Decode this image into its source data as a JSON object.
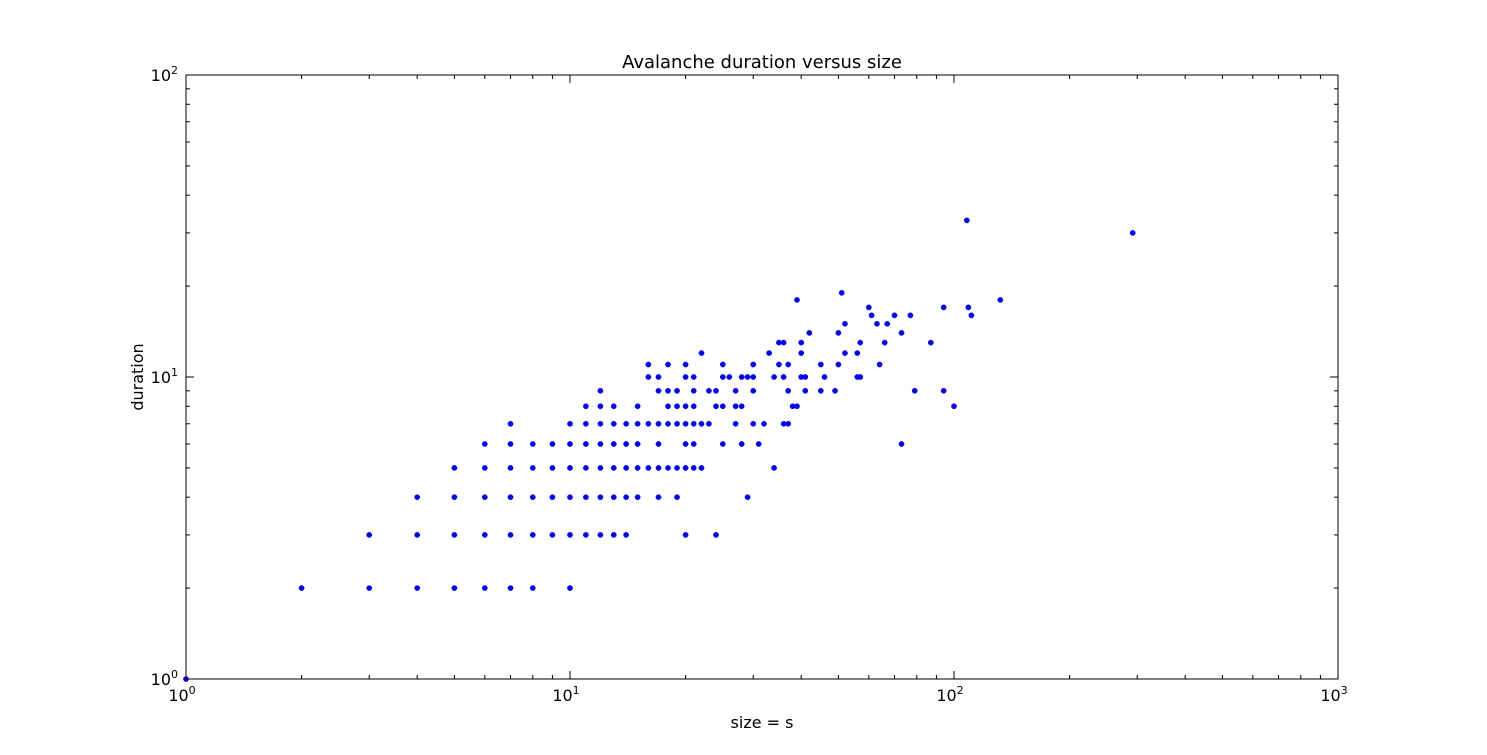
{
  "chart_data": {
    "type": "scatter",
    "title": "Avalanche duration versus size",
    "xlabel": "size = s",
    "ylabel": "duration",
    "xscale": "log",
    "yscale": "log",
    "xlim": [
      1,
      1000
    ],
    "ylim": [
      1,
      100
    ],
    "grid": false,
    "legend": "none",
    "colors": {
      "marker": "#0000ff",
      "axes": "#000000",
      "background": "#ffffff"
    },
    "x_ticks": [
      {
        "value": 1,
        "base": "10",
        "exp": "0"
      },
      {
        "value": 10,
        "base": "10",
        "exp": "1"
      },
      {
        "value": 100,
        "base": "10",
        "exp": "2"
      },
      {
        "value": 1000,
        "base": "10",
        "exp": "3"
      }
    ],
    "y_ticks": [
      {
        "value": 1,
        "base": "10",
        "exp": "0"
      },
      {
        "value": 10,
        "base": "10",
        "exp": "1"
      },
      {
        "value": 100,
        "base": "10",
        "exp": "2"
      }
    ],
    "points": [
      [
        1,
        1
      ],
      [
        2,
        2
      ],
      [
        3,
        2
      ],
      [
        3,
        3
      ],
      [
        4,
        2
      ],
      [
        4,
        3
      ],
      [
        4,
        4
      ],
      [
        5,
        2
      ],
      [
        5,
        3
      ],
      [
        5,
        4
      ],
      [
        5,
        5
      ],
      [
        6,
        2
      ],
      [
        6,
        3
      ],
      [
        6,
        4
      ],
      [
        6,
        5
      ],
      [
        6,
        6
      ],
      [
        7,
        2
      ],
      [
        7,
        3
      ],
      [
        7,
        4
      ],
      [
        7,
        5
      ],
      [
        7,
        6
      ],
      [
        7,
        7
      ],
      [
        8,
        2
      ],
      [
        8,
        3
      ],
      [
        8,
        4
      ],
      [
        8,
        5
      ],
      [
        8,
        6
      ],
      [
        9,
        3
      ],
      [
        9,
        4
      ],
      [
        9,
        5
      ],
      [
        9,
        6
      ],
      [
        10,
        2
      ],
      [
        10,
        3
      ],
      [
        10,
        4
      ],
      [
        10,
        5
      ],
      [
        10,
        6
      ],
      [
        10,
        7
      ],
      [
        11,
        3
      ],
      [
        11,
        4
      ],
      [
        11,
        5
      ],
      [
        11,
        6
      ],
      [
        11,
        7
      ],
      [
        11,
        8
      ],
      [
        12,
        3
      ],
      [
        12,
        4
      ],
      [
        12,
        5
      ],
      [
        12,
        6
      ],
      [
        12,
        7
      ],
      [
        12,
        8
      ],
      [
        12,
        9
      ],
      [
        13,
        3
      ],
      [
        13,
        4
      ],
      [
        13,
        5
      ],
      [
        13,
        6
      ],
      [
        13,
        7
      ],
      [
        13,
        8
      ],
      [
        14,
        3
      ],
      [
        14,
        4
      ],
      [
        14,
        5
      ],
      [
        14,
        6
      ],
      [
        14,
        7
      ],
      [
        15,
        4
      ],
      [
        15,
        5
      ],
      [
        15,
        6
      ],
      [
        15,
        7
      ],
      [
        15,
        8
      ],
      [
        16,
        5
      ],
      [
        16,
        7
      ],
      [
        16,
        10
      ],
      [
        16,
        11
      ],
      [
        17,
        4
      ],
      [
        17,
        5
      ],
      [
        17,
        6
      ],
      [
        17,
        7
      ],
      [
        17,
        9
      ],
      [
        17,
        10
      ],
      [
        18,
        5
      ],
      [
        18,
        7
      ],
      [
        18,
        8
      ],
      [
        18,
        9
      ],
      [
        18,
        11
      ],
      [
        19,
        4
      ],
      [
        19,
        5
      ],
      [
        19,
        7
      ],
      [
        19,
        8
      ],
      [
        19,
        9
      ],
      [
        20,
        3
      ],
      [
        20,
        5
      ],
      [
        20,
        6
      ],
      [
        20,
        7
      ],
      [
        20,
        8
      ],
      [
        20,
        10
      ],
      [
        20,
        11
      ],
      [
        21,
        5
      ],
      [
        21,
        6
      ],
      [
        21,
        7
      ],
      [
        21,
        8
      ],
      [
        21,
        9
      ],
      [
        21,
        10
      ],
      [
        22,
        5
      ],
      [
        22,
        7
      ],
      [
        22,
        12
      ],
      [
        23,
        7
      ],
      [
        23,
        9
      ],
      [
        24,
        3
      ],
      [
        24,
        8
      ],
      [
        24,
        9
      ],
      [
        25,
        6
      ],
      [
        25,
        8
      ],
      [
        25,
        10
      ],
      [
        25,
        11
      ],
      [
        26,
        10
      ],
      [
        27,
        7
      ],
      [
        27,
        8
      ],
      [
        27,
        9
      ],
      [
        28,
        6
      ],
      [
        28,
        8
      ],
      [
        28,
        10
      ],
      [
        29,
        4
      ],
      [
        29,
        10
      ],
      [
        30,
        7
      ],
      [
        30,
        9
      ],
      [
        30,
        10
      ],
      [
        30,
        11
      ],
      [
        31,
        6
      ],
      [
        32,
        7
      ],
      [
        33,
        12
      ],
      [
        34,
        5
      ],
      [
        34,
        10
      ],
      [
        35,
        11
      ],
      [
        35,
        13
      ],
      [
        36,
        7
      ],
      [
        36,
        10
      ],
      [
        36,
        13
      ],
      [
        37,
        7
      ],
      [
        37,
        9
      ],
      [
        37,
        11
      ],
      [
        38,
        8
      ],
      [
        39,
        8
      ],
      [
        39,
        18
      ],
      [
        40,
        10
      ],
      [
        40,
        12
      ],
      [
        40,
        13
      ],
      [
        41,
        9
      ],
      [
        41,
        10
      ],
      [
        42,
        14
      ],
      [
        45,
        9
      ],
      [
        45,
        11
      ],
      [
        46,
        10
      ],
      [
        49,
        9
      ],
      [
        50,
        11
      ],
      [
        50,
        14
      ],
      [
        51,
        19
      ],
      [
        52,
        12
      ],
      [
        52,
        15
      ],
      [
        56,
        10
      ],
      [
        56,
        12
      ],
      [
        57,
        10
      ],
      [
        57,
        13
      ],
      [
        60,
        17
      ],
      [
        61,
        16
      ],
      [
        63,
        15
      ],
      [
        64,
        11
      ],
      [
        66,
        13
      ],
      [
        67,
        15
      ],
      [
        70,
        16
      ],
      [
        73,
        6
      ],
      [
        73,
        14
      ],
      [
        77,
        16
      ],
      [
        79,
        9
      ],
      [
        87,
        13
      ],
      [
        94,
        9
      ],
      [
        94,
        17
      ],
      [
        100,
        8
      ],
      [
        108,
        33
      ],
      [
        109,
        17
      ],
      [
        111,
        16
      ],
      [
        132,
        18
      ],
      [
        292,
        30
      ]
    ]
  }
}
